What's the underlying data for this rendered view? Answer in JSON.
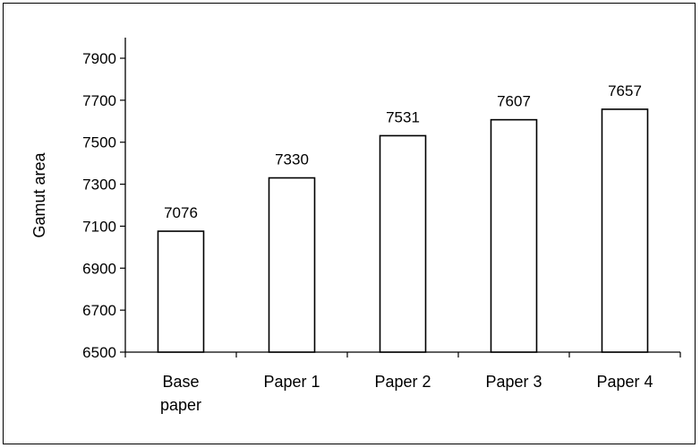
{
  "chart_data": {
    "type": "bar",
    "title": "",
    "xlabel": "",
    "ylabel": "Gamut area",
    "categories": [
      [
        "Base",
        "paper"
      ],
      [
        "Paper 1"
      ],
      [
        "Paper 2"
      ],
      [
        "Paper 3"
      ],
      [
        "Paper 4"
      ]
    ],
    "values": [
      7076,
      7330,
      7531,
      7607,
      7657
    ],
    "data_labels": [
      "7076",
      "7330",
      "7531",
      "7607",
      "7657"
    ],
    "ylim": [
      6500,
      7900
    ],
    "yticks": [
      "6500",
      "6700",
      "6900",
      "7100",
      "7300",
      "7500",
      "7700",
      "7900"
    ],
    "grid": false,
    "legend": "none",
    "bar_fill": "#ffffff",
    "bar_stroke": "#000000"
  }
}
